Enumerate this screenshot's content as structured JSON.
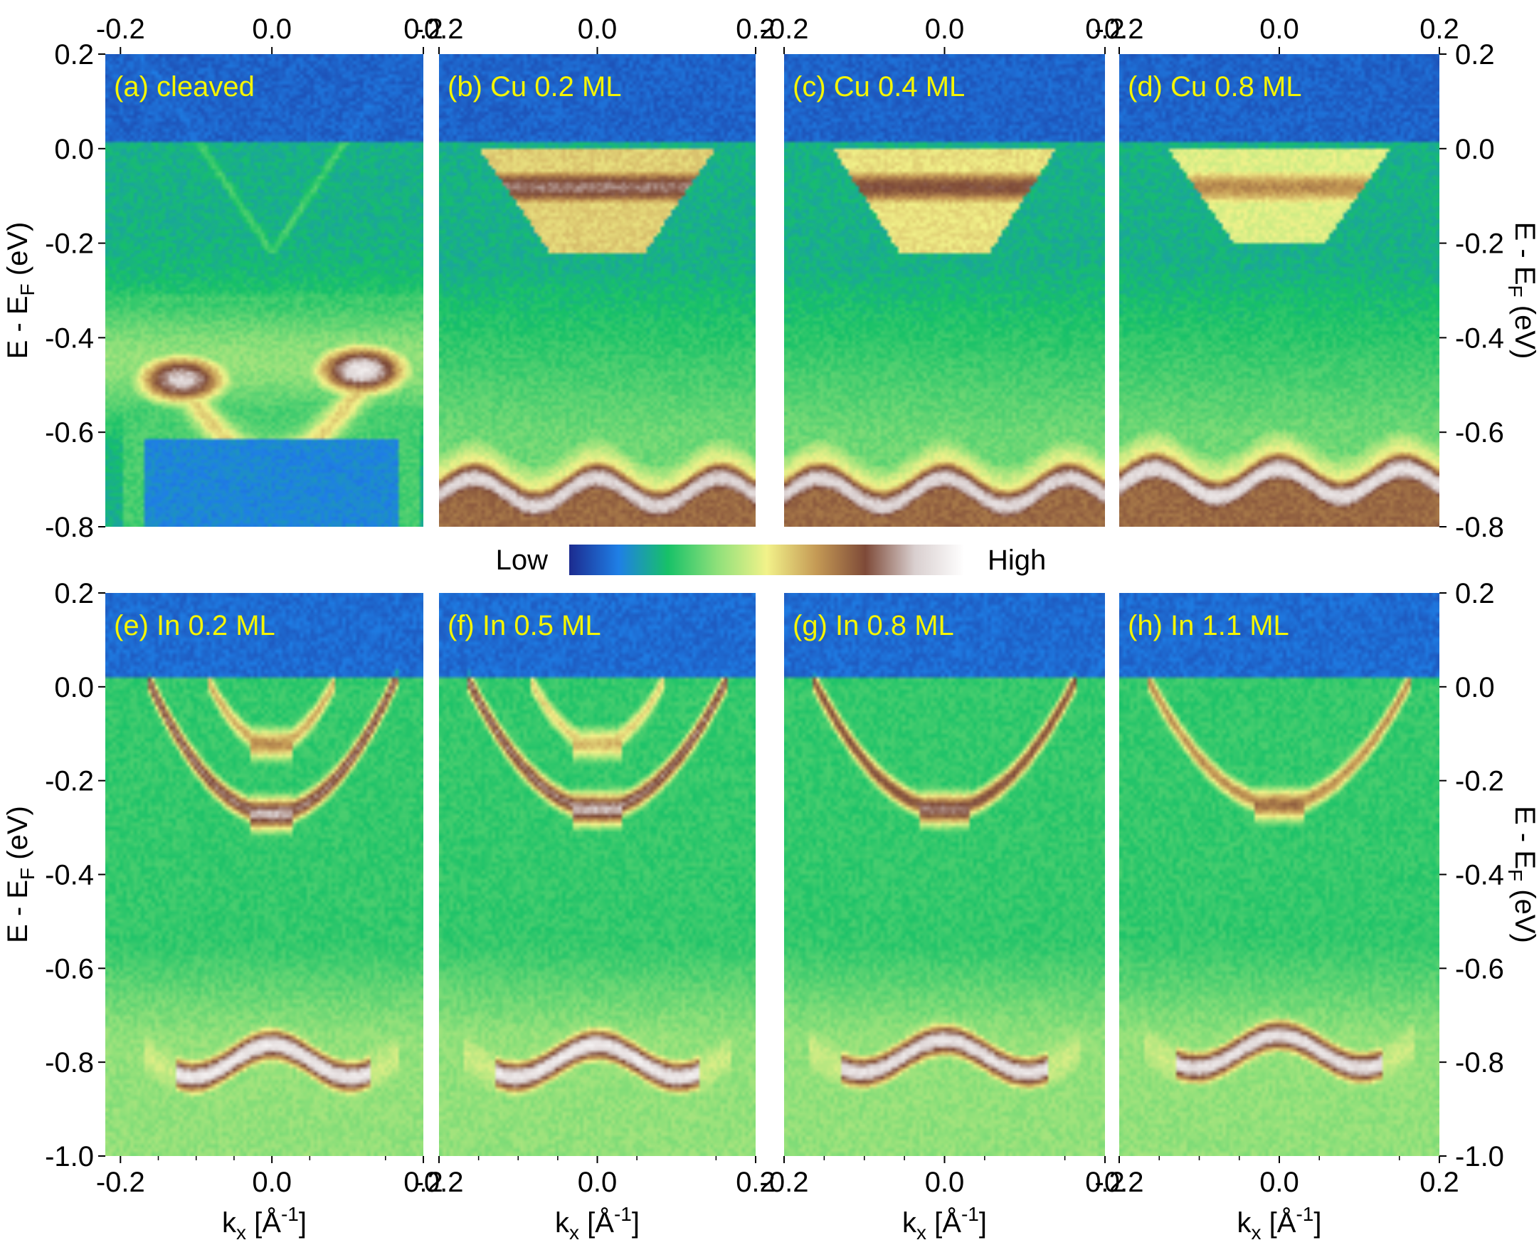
{
  "colorbar": {
    "low_label": "Low",
    "high_label": "High",
    "stops": [
      "#1c2b8f",
      "#1f7fe6",
      "#17c168",
      "#8fe07a",
      "#f2f28a",
      "#c59a55",
      "#7e4a38",
      "#d9cfcf",
      "#ffffff"
    ]
  },
  "axes": {
    "x_tick_labels": [
      "-0.2",
      "0.0",
      "0.2"
    ],
    "x_axis_label": "k",
    "x_axis_subscript": "x",
    "x_axis_unit": " [Å",
    "x_axis_unit_sup": "-1",
    "x_axis_unit_close": "]",
    "y_axis_label": "E - E",
    "y_axis_subscript": "F",
    "y_axis_unit": " (eV)",
    "top_row_y_ticks": [
      "0.2",
      "0.0",
      "-0.2",
      "-0.4",
      "-0.6",
      "-0.8"
    ],
    "bottom_row_y_ticks": [
      "0.2",
      "0.0",
      "-0.2",
      "-0.4",
      "-0.6",
      "-0.8",
      "-1.0"
    ]
  },
  "chart_data": [
    {
      "type": "heatmap",
      "title": "(a) cleaved",
      "xlim": [
        -0.22,
        0.2
      ],
      "ylim": [
        -0.8,
        0.2
      ],
      "features": [
        {
          "kind": "cone",
          "center": 0.0,
          "top": -0.05,
          "vertex": -0.22,
          "ktop": 0.07,
          "intensity": 0.18
        },
        {
          "kind": "lobe",
          "x": -0.12,
          "y": -0.49,
          "intensity": 0.9
        },
        {
          "kind": "lobe",
          "x": 0.12,
          "y": -0.47,
          "intensity": 0.95
        }
      ]
    },
    {
      "type": "heatmap",
      "title": "(b) Cu 0.2 ML",
      "xlim": [
        -0.2,
        0.2
      ],
      "ylim": [
        -0.8,
        0.2
      ],
      "features": [
        {
          "kind": "pocket",
          "top": 0.0,
          "bottom": -0.22,
          "ktop": 0.15,
          "intensity": 0.5
        },
        {
          "kind": "wband",
          "y": -0.73,
          "intensity": 0.9
        }
      ]
    },
    {
      "type": "heatmap",
      "title": "(c) Cu 0.4 ML",
      "xlim": [
        -0.2,
        0.2
      ],
      "ylim": [
        -0.8,
        0.2
      ],
      "features": [
        {
          "kind": "pocket",
          "top": 0.0,
          "bottom": -0.22,
          "ktop": 0.14,
          "intensity": 0.45
        },
        {
          "kind": "wband",
          "y": -0.73,
          "intensity": 0.9
        }
      ]
    },
    {
      "type": "heatmap",
      "title": "(d) Cu 0.8 ML",
      "xlim": [
        -0.2,
        0.2
      ],
      "ylim": [
        -0.8,
        0.2
      ],
      "features": [
        {
          "kind": "pocket",
          "top": 0.0,
          "bottom": -0.2,
          "ktop": 0.14,
          "intensity": 0.35
        },
        {
          "kind": "wband",
          "y": -0.71,
          "intensity": 0.92
        }
      ]
    },
    {
      "type": "heatmap",
      "title": "(e) In 0.2 ML",
      "xlim": [
        -0.22,
        0.2
      ],
      "ylim": [
        -1.0,
        0.2
      ],
      "features": [
        {
          "kind": "parabola",
          "vertex": -0.27,
          "ktop": 0.16,
          "intensity": 0.6
        },
        {
          "kind": "parabola",
          "vertex": -0.12,
          "ktop": 0.08,
          "intensity": 0.4
        },
        {
          "kind": "arch",
          "y": -0.8,
          "intensity": 0.95
        }
      ]
    },
    {
      "type": "heatmap",
      "title": "(f) In 0.5 ML",
      "xlim": [
        -0.2,
        0.2
      ],
      "ylim": [
        -1.0,
        0.2
      ],
      "features": [
        {
          "kind": "parabola",
          "vertex": -0.26,
          "ktop": 0.16,
          "intensity": 0.6
        },
        {
          "kind": "parabola",
          "vertex": -0.12,
          "ktop": 0.08,
          "intensity": 0.35
        },
        {
          "kind": "arch",
          "y": -0.8,
          "intensity": 0.95
        }
      ]
    },
    {
      "type": "heatmap",
      "title": "(g) In 0.8 ML",
      "xlim": [
        -0.2,
        0.2
      ],
      "ylim": [
        -1.0,
        0.2
      ],
      "features": [
        {
          "kind": "parabola",
          "vertex": -0.26,
          "ktop": 0.16,
          "intensity": 0.55
        },
        {
          "kind": "arch",
          "y": -0.79,
          "intensity": 0.93
        }
      ]
    },
    {
      "type": "heatmap",
      "title": "(h) In 1.1 ML",
      "xlim": [
        -0.2,
        0.2
      ],
      "ylim": [
        -1.0,
        0.2
      ],
      "features": [
        {
          "kind": "parabola",
          "vertex": -0.25,
          "ktop": 0.16,
          "intensity": 0.45
        },
        {
          "kind": "arch",
          "y": -0.78,
          "intensity": 0.93
        }
      ]
    }
  ]
}
